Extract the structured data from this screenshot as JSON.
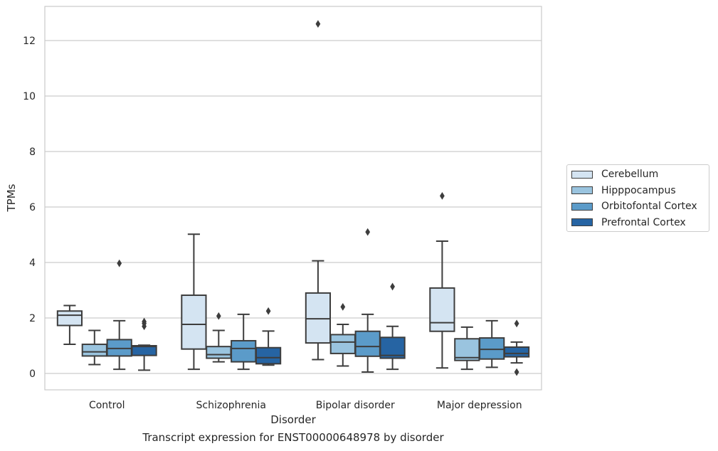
{
  "chart_data": {
    "type": "boxplot",
    "caption": "Transcript expression for ENST00000648978 by disorder",
    "xlabel": "Disorder",
    "ylabel": "TPMs",
    "ylim": [
      -0.55,
      13.2
    ],
    "yticks": [
      0,
      2,
      4,
      6,
      8,
      10,
      12
    ],
    "grid": true,
    "legend_position": "right",
    "categories": [
      "Control",
      "Schizophrenia",
      "Bipolar disorder",
      "Major depression"
    ],
    "series": [
      {
        "name": "Cerebellum",
        "color": "#d4e4f2",
        "boxes": [
          {
            "whislo": 1.05,
            "q1": 1.73,
            "med": 2.1,
            "q3": 2.25,
            "whishi": 2.45,
            "fliers": []
          },
          {
            "whislo": 0.15,
            "q1": 0.88,
            "med": 1.77,
            "q3": 2.82,
            "whishi": 5.02,
            "fliers": []
          },
          {
            "whislo": 0.5,
            "q1": 1.1,
            "med": 1.97,
            "q3": 2.9,
            "whishi": 4.06,
            "fliers": [
              12.6
            ]
          },
          {
            "whislo": 0.2,
            "q1": 1.52,
            "med": 1.83,
            "q3": 3.08,
            "whishi": 4.77,
            "fliers": [
              6.4
            ]
          }
        ]
      },
      {
        "name": "Hipppocampus",
        "color": "#9ac4df",
        "boxes": [
          {
            "whislo": 0.32,
            "q1": 0.63,
            "med": 0.78,
            "q3": 1.05,
            "whishi": 1.55,
            "fliers": []
          },
          {
            "whislo": 0.42,
            "q1": 0.55,
            "med": 0.68,
            "q3": 0.97,
            "whishi": 1.55,
            "fliers": [
              2.07
            ]
          },
          {
            "whislo": 0.27,
            "q1": 0.72,
            "med": 1.13,
            "q3": 1.4,
            "whishi": 1.77,
            "fliers": [
              2.4
            ]
          },
          {
            "whislo": 0.15,
            "q1": 0.47,
            "med": 0.57,
            "q3": 1.25,
            "whishi": 1.67,
            "fliers": []
          }
        ]
      },
      {
        "name": "Orbitofontal Cortex",
        "color": "#5b9bc9",
        "boxes": [
          {
            "whislo": 0.15,
            "q1": 0.63,
            "med": 0.9,
            "q3": 1.22,
            "whishi": 1.9,
            "fliers": [
              3.97
            ]
          },
          {
            "whislo": 0.15,
            "q1": 0.42,
            "med": 0.9,
            "q3": 1.18,
            "whishi": 2.13,
            "fliers": []
          },
          {
            "whislo": 0.05,
            "q1": 0.62,
            "med": 0.97,
            "q3": 1.52,
            "whishi": 2.13,
            "fliers": [
              5.1
            ]
          },
          {
            "whislo": 0.22,
            "q1": 0.52,
            "med": 0.87,
            "q3": 1.28,
            "whishi": 1.9,
            "fliers": []
          }
        ]
      },
      {
        "name": "Prefrontal Cortex",
        "color": "#2664a3",
        "boxes": [
          {
            "whislo": 0.12,
            "q1": 0.65,
            "med": 0.97,
            "q3": 1.0,
            "whishi": 1.02,
            "fliers": [
              1.7,
              1.8,
              1.87
            ]
          },
          {
            "whislo": 0.3,
            "q1": 0.35,
            "med": 0.57,
            "q3": 0.93,
            "whishi": 1.53,
            "fliers": [
              2.25
            ]
          },
          {
            "whislo": 0.15,
            "q1": 0.55,
            "med": 0.65,
            "q3": 1.3,
            "whishi": 1.7,
            "fliers": [
              3.13
            ]
          },
          {
            "whislo": 0.38,
            "q1": 0.6,
            "med": 0.72,
            "q3": 0.95,
            "whishi": 1.13,
            "fliers": [
              1.8,
              0.05
            ]
          }
        ]
      }
    ]
  }
}
